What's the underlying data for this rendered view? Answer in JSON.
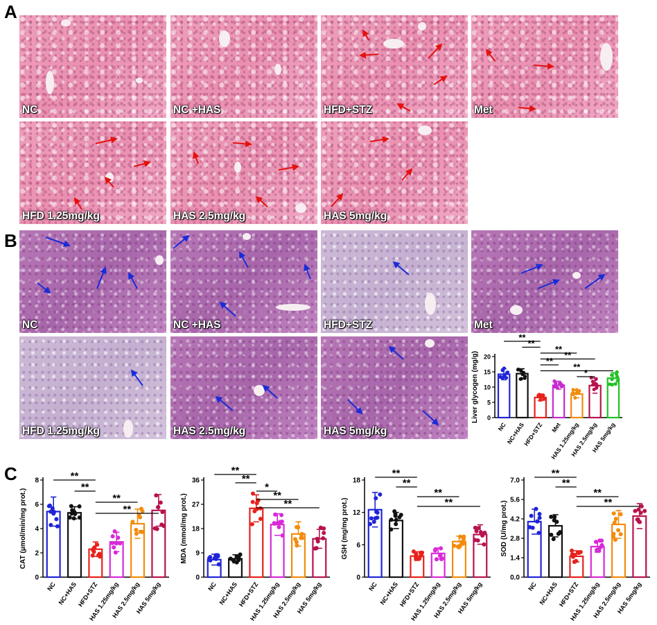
{
  "panels": {
    "a": "A",
    "b": "B",
    "c": "C"
  },
  "panel_a_labels": [
    "NC",
    "NC +HAS",
    "HFD+STZ",
    "Met",
    "HFD 1.25mg/kg",
    "HAS 2.5mg/kg",
    "HAS 5mg/kg"
  ],
  "panel_b_labels": [
    "NC",
    "NC +HAS",
    "HFD+STZ",
    "Met",
    "HFD 1.25mg/kg",
    "HAS 2.5mg/kg",
    "HAS 5mg/kg"
  ],
  "colors": {
    "nc": "#1f24d6",
    "nc_has": "#111111",
    "hfd_stz": "#e8211c",
    "met": "#c62bd0",
    "has125": "#d829d8",
    "has25": "#f28c0c",
    "has5": "#b8124e",
    "has5_glycogen": "#20c224",
    "arrow_red": "#e3120f",
    "arrow_blue": "#1a2bd8"
  },
  "chart_data": [
    {
      "type": "bar",
      "ylabel": "Liver glycogen  (mg/g)",
      "categories": [
        "NC",
        "NC+HAS",
        "HFD+STZ",
        "Met",
        "HAS 1.25mg/kg",
        "HAS 2.5mg/kg",
        "HAS 5mg/kg"
      ],
      "values": [
        14.2,
        14.4,
        6.6,
        10.6,
        7.7,
        10.5,
        12.9
      ],
      "errors": [
        1.8,
        1.6,
        1.1,
        1.3,
        1.2,
        2.5,
        1.8
      ],
      "ylim": [
        0,
        20
      ],
      "yticks": [
        0,
        5,
        10,
        15,
        20
      ],
      "significance": [
        {
          "from": 0,
          "to": 2,
          "label": "**"
        },
        {
          "from": 1,
          "to": 2,
          "label": "**"
        },
        {
          "from": 2,
          "to": 4,
          "label": "**"
        },
        {
          "from": 2,
          "to": 5,
          "label": "**"
        },
        {
          "from": 2,
          "to": 3,
          "label": "**"
        },
        {
          "from": 2,
          "to": 6,
          "label": "**"
        },
        {
          "from": 4,
          "to": 5,
          "label": "*"
        }
      ]
    },
    {
      "type": "bar",
      "ylabel": "CAT (μmol/min/mg prot.)",
      "categories": [
        "NC",
        "NC+HAS",
        "HFD+STZ",
        "HAS 1.25mg/kg",
        "HAS 2.5mg/kg",
        "HAS 5mg/kg"
      ],
      "values": [
        5.4,
        5.3,
        2.3,
        2.9,
        4.4,
        5.5
      ],
      "errors": [
        1.2,
        0.5,
        0.6,
        0.8,
        1.2,
        1.3
      ],
      "ylim": [
        0,
        8
      ],
      "yticks": [
        0,
        2,
        4,
        6,
        8
      ],
      "significance": [
        {
          "from": 0,
          "to": 2,
          "label": "**"
        },
        {
          "from": 1,
          "to": 2,
          "label": "**"
        },
        {
          "from": 2,
          "to": 4,
          "label": "**"
        },
        {
          "from": 2,
          "to": 5,
          "label": "**"
        }
      ]
    },
    {
      "type": "bar",
      "ylabel": "MDA (mmol/mg prot.)",
      "categories": [
        "NC",
        "NC+HAS",
        "HFD+STZ",
        "HAS 1.25mg/kg",
        "HAS 2.5mg/kg",
        "HAS 5mg/kg"
      ],
      "values": [
        6.5,
        6.8,
        25.5,
        19.5,
        16.0,
        14.2
      ],
      "errors": [
        2.0,
        1.5,
        5.0,
        4.0,
        4.5,
        3.5
      ],
      "ylim": [
        0,
        36
      ],
      "yticks": [
        0,
        9,
        18,
        27,
        36
      ],
      "significance": [
        {
          "from": 0,
          "to": 2,
          "label": "**"
        },
        {
          "from": 1,
          "to": 2,
          "label": "**"
        },
        {
          "from": 2,
          "to": 3,
          "label": "*"
        },
        {
          "from": 2,
          "to": 4,
          "label": "**"
        },
        {
          "from": 2,
          "to": 5,
          "label": "**"
        }
      ]
    },
    {
      "type": "bar",
      "ylabel": "GSH (mg/mg prot.)",
      "categories": [
        "NC",
        "NC+HAS",
        "HFD+STZ",
        "HAS 1.25mg/kg",
        "HAS 2.5mg/kg",
        "HAS 5mg/kg"
      ],
      "values": [
        12.5,
        10.5,
        3.9,
        4.4,
        6.6,
        7.9
      ],
      "errors": [
        3.2,
        1.5,
        0.8,
        1.0,
        1.0,
        1.8
      ],
      "ylim": [
        0,
        18
      ],
      "yticks": [
        0,
        6,
        12,
        18
      ],
      "significance": [
        {
          "from": 0,
          "to": 2,
          "label": "**"
        },
        {
          "from": 1,
          "to": 2,
          "label": "**"
        },
        {
          "from": 2,
          "to": 4,
          "label": "**"
        },
        {
          "from": 2,
          "to": 5,
          "label": "**"
        }
      ]
    },
    {
      "type": "bar",
      "ylabel": "SOD (U/mg prot.)",
      "categories": [
        "NC",
        "NC+HAS",
        "HFD+STZ",
        "HAS 1.25mg/kg",
        "HAS 2.5mg/kg",
        "HAS 5mg/kg"
      ],
      "values": [
        4.0,
        3.7,
        1.5,
        2.2,
        3.8,
        4.4
      ],
      "errors": [
        0.9,
        0.8,
        0.4,
        0.4,
        1.0,
        0.9
      ],
      "ylim": [
        0,
        7
      ],
      "yticks": [
        0.0,
        1.4,
        2.8,
        4.2,
        5.6,
        7.0
      ],
      "significance": [
        {
          "from": 0,
          "to": 2,
          "label": "**"
        },
        {
          "from": 1,
          "to": 2,
          "label": "**"
        },
        {
          "from": 2,
          "to": 4,
          "label": "**"
        },
        {
          "from": 2,
          "to": 5,
          "label": "**"
        }
      ]
    }
  ]
}
